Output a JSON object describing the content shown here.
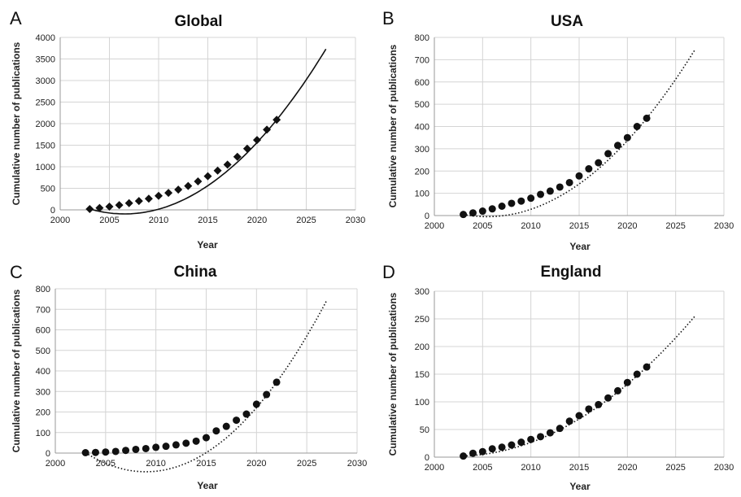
{
  "chart_data": [
    {
      "type": "scatter",
      "panel_label": "A",
      "title": "Global",
      "xlabel": "Year",
      "ylabel": "Cumulative number of publications",
      "xlim": [
        2000,
        2030
      ],
      "ylim": [
        0,
        4000
      ],
      "xticks": [
        2000,
        2005,
        2010,
        2015,
        2020,
        2025,
        2030
      ],
      "yticks": [
        0,
        500,
        1000,
        1500,
        2000,
        2500,
        3000,
        3500,
        4000
      ],
      "grid": true,
      "marker": "diamond",
      "trendline": "solid",
      "trend_end": [
        2027,
        3730
      ],
      "x": [
        2003,
        2004,
        2005,
        2006,
        2007,
        2008,
        2009,
        2010,
        2011,
        2012,
        2013,
        2014,
        2015,
        2016,
        2017,
        2018,
        2019,
        2020,
        2021,
        2022
      ],
      "y": [
        20,
        45,
        75,
        110,
        155,
        205,
        260,
        325,
        395,
        470,
        555,
        660,
        780,
        910,
        1050,
        1230,
        1420,
        1620,
        1860,
        2090
      ]
    },
    {
      "type": "scatter",
      "panel_label": "B",
      "title": "USA",
      "xlabel": "Year",
      "ylabel": "Cumulative number of publications",
      "xlim": [
        2000,
        2030
      ],
      "ylim": [
        0,
        800
      ],
      "xticks": [
        2000,
        2005,
        2010,
        2015,
        2020,
        2025,
        2030
      ],
      "yticks": [
        0,
        100,
        200,
        300,
        400,
        500,
        600,
        700,
        800
      ],
      "grid": true,
      "marker": "circle",
      "trendline": "dotted",
      "trend_end": [
        2027,
        745
      ],
      "x": [
        2003,
        2004,
        2005,
        2006,
        2007,
        2008,
        2009,
        2010,
        2011,
        2012,
        2013,
        2014,
        2015,
        2016,
        2017,
        2018,
        2019,
        2020,
        2021,
        2022
      ],
      "y": [
        5,
        12,
        20,
        30,
        42,
        55,
        65,
        78,
        95,
        110,
        128,
        148,
        178,
        210,
        237,
        278,
        315,
        350,
        400,
        437
      ]
    },
    {
      "type": "scatter",
      "panel_label": "C",
      "title": "China",
      "xlabel": "Year",
      "ylabel": "Cumulative number of publications",
      "xlim": [
        2000,
        2030
      ],
      "ylim": [
        0,
        800
      ],
      "xticks": [
        2000,
        2005,
        2010,
        2015,
        2020,
        2025,
        2030
      ],
      "yticks": [
        0,
        100,
        200,
        300,
        400,
        500,
        600,
        700,
        800
      ],
      "grid": true,
      "marker": "circle",
      "trendline": "dotted",
      "trend_end": [
        2027,
        745
      ],
      "x": [
        2003,
        2004,
        2005,
        2006,
        2007,
        2008,
        2009,
        2010,
        2011,
        2012,
        2013,
        2014,
        2015,
        2016,
        2017,
        2018,
        2019,
        2020,
        2021,
        2022
      ],
      "y": [
        2,
        3,
        5,
        8,
        13,
        18,
        22,
        28,
        33,
        40,
        48,
        58,
        75,
        108,
        130,
        160,
        190,
        238,
        285,
        345
      ]
    },
    {
      "type": "scatter",
      "panel_label": "D",
      "title": "England",
      "xlabel": "Year",
      "ylabel": "Cumulative number of publications",
      "xlim": [
        2000,
        2030
      ],
      "ylim": [
        0,
        300
      ],
      "xticks": [
        2000,
        2005,
        2010,
        2015,
        2020,
        2025,
        2030
      ],
      "yticks": [
        0,
        50,
        100,
        150,
        200,
        250,
        300
      ],
      "grid": true,
      "marker": "circle",
      "trendline": "dotted",
      "trend_end": [
        2027,
        255
      ],
      "x": [
        2003,
        2004,
        2005,
        2006,
        2007,
        2008,
        2009,
        2010,
        2011,
        2012,
        2013,
        2014,
        2015,
        2016,
        2017,
        2018,
        2019,
        2020,
        2021,
        2022
      ],
      "y": [
        2,
        7,
        10,
        15,
        18,
        22,
        27,
        32,
        37,
        44,
        52,
        65,
        75,
        87,
        95,
        107,
        120,
        135,
        150,
        163
      ]
    }
  ]
}
